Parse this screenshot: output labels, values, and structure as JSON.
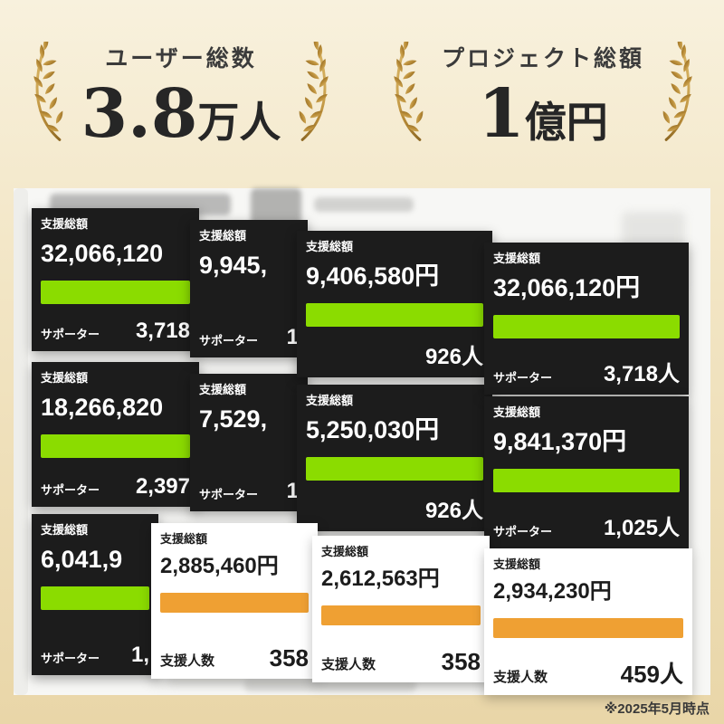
{
  "banner": {
    "left": {
      "label": "ユーザー総数",
      "value": "3.8",
      "unit": "万人"
    },
    "right": {
      "label": "プロジェクト総額",
      "value": "1",
      "unit": "億円"
    }
  },
  "footnote": "※2025年5月時点",
  "colors": {
    "bar_green": "#8bdc00",
    "bar_orange": "#efa033",
    "card_dark_bg": "#1c1c1c",
    "gold": "#b98c38"
  },
  "cards": [
    {
      "theme": "dark",
      "label": "支援総額",
      "amount": "32,066,120",
      "bar": true,
      "bottom_label": "サポーター",
      "count": "3,718"
    },
    {
      "theme": "dark",
      "label": "支援総額",
      "amount": "9,945,",
      "bar": false,
      "bottom_label": "サポーター",
      "count": "1"
    },
    {
      "theme": "dark",
      "label": "支援総額",
      "amount": "9,406,580円",
      "bar": true,
      "bottom_label": "",
      "count": "926人"
    },
    {
      "theme": "dark",
      "label": "支援総額",
      "amount": "32,066,120円",
      "bar": true,
      "bottom_label": "サポーター",
      "count": "3,718人"
    },
    {
      "theme": "dark",
      "label": "支援総額",
      "amount": "18,266,820",
      "bar": true,
      "bottom_label": "サポーター",
      "count": "2,397"
    },
    {
      "theme": "dark",
      "label": "支援総額",
      "amount": "7,529,",
      "bar": false,
      "bottom_label": "サポーター",
      "count": "1"
    },
    {
      "theme": "dark",
      "label": "支援総額",
      "amount": "5,250,030円",
      "bar": true,
      "bottom_label": "",
      "count": "926人"
    },
    {
      "theme": "dark",
      "label": "支援総額",
      "amount": "9,841,370円",
      "bar": true,
      "bottom_label": "サポーター",
      "count": "1,025人"
    },
    {
      "theme": "dark",
      "label": "支援総額",
      "amount": "6,041,9",
      "bar": true,
      "bottom_label": "サポーター",
      "count": "1,"
    },
    {
      "theme": "light",
      "label": "支援総額",
      "amount": "2,885,460円",
      "bar": true,
      "bottom_label": "支援人数",
      "count": "358"
    },
    {
      "theme": "light",
      "label": "支援総額",
      "amount": "2,612,563円",
      "bar": true,
      "bottom_label": "支援人数",
      "count": "358"
    },
    {
      "theme": "light",
      "label": "支援総額",
      "amount": "2,934,230円",
      "bar": true,
      "bottom_label": "支援人数",
      "count": "459人"
    }
  ]
}
